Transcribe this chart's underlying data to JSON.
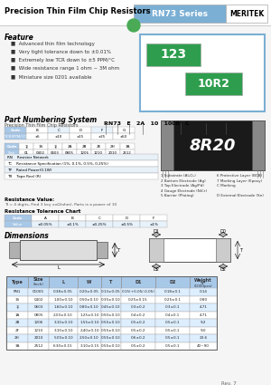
{
  "title": "Precision Thin Film Chip Resistors",
  "series": "RN73 Series",
  "brand": "MERITEK",
  "bg_color": "#f0f0f0",
  "header_blue": "#7bafd4",
  "feature_title": "Feature",
  "features": [
    "Advanced thin film technology",
    "Very tight tolerance down to ±0.01%",
    "Extremely low TCR down to ±5 PPM/°C",
    "Wide resistance range 1 ohm ~ 3M ohm",
    "Miniature size 0201 available"
  ],
  "part_numbering_title": "Part Numbering System",
  "dimensions_title": "Dimensions",
  "green_box": "#2e9e4e",
  "table_header_color": "#a8c8e8",
  "table_row_alt": "#ddeeff",
  "table_headers": [
    "Type",
    "Size\n(Inch)",
    "L",
    "W",
    "T",
    "D1",
    "D2",
    "Weight\n(g)\n(1000pcs)"
  ],
  "table_rows": [
    [
      "RN1",
      "01005",
      "0.38±0.05",
      "0.20±0.05",
      "0.13±0.05",
      "0.15(+0.05/-0.05)",
      "0.18±0.1",
      "0.14"
    ],
    [
      "1S",
      "0402",
      "1.00±0.10",
      "0.50±0.10",
      "0.35±0.10",
      "0.25±0.15",
      "0.25±0.1",
      "0.80"
    ],
    [
      "1J",
      "0603",
      "1.60±0.10",
      "0.80±0.10",
      "0.45±0.10",
      "0.3±0.2",
      "0.3±0.1",
      "4.71"
    ],
    [
      "1A",
      "0805",
      "2.00±0.10",
      "1.25±0.10",
      "0.50±0.10",
      "0.4±0.2",
      "0.4±0.1",
      "4.71"
    ],
    [
      "2B",
      "1206",
      "3.10±0.10",
      "1.55±0.10",
      "0.55±0.10",
      "0.5±0.2",
      "0.5±0.1",
      "9.2"
    ],
    [
      "2F",
      "1210",
      "3.10±0.10",
      "2.40±0.10",
      "0.55±0.10",
      "0.5±0.2",
      "0.5±0.1",
      "9.0"
    ],
    [
      "2H",
      "2010",
      "5.00±0.10",
      "2.50±0.10",
      "0.55±0.10",
      "0.6±0.2",
      "0.5±0.1",
      "23.6"
    ],
    [
      "3A",
      "2512",
      "6.30±0.15",
      "3.10±0.15",
      "0.55±0.10",
      "0.5±0.2",
      "0.5±0.1",
      "40~90"
    ]
  ],
  "rev": "Rev. 7"
}
